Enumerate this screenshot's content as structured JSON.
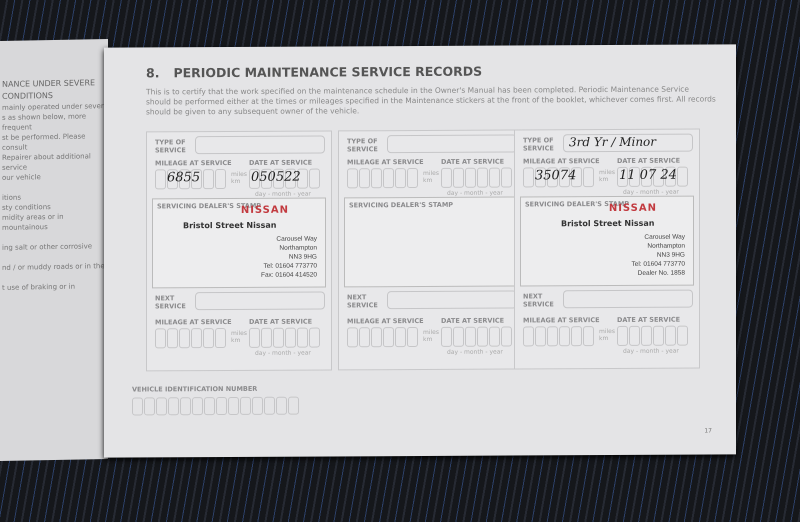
{
  "left_page": {
    "heading": [
      "NANCE UNDER SEVERE",
      "CONDITIONS"
    ],
    "lines": [
      "mainly operated under severe",
      "s as shown below, more frequent",
      "st be performed. Please consult",
      "Repairer about additional service",
      "our vehicle",
      "",
      "itions",
      "sty conditions",
      "midity areas or in mountainous",
      "",
      "ing salt or other corrosive",
      "",
      "nd / or muddy roads or in the",
      "",
      "t use of braking or in"
    ]
  },
  "page": {
    "section_number": "8.",
    "title": "PERIODIC MAINTENANCE SERVICE RECORDS",
    "intro": "This is to certify that the work specified on the maintenance schedule in the Owner's Manual has been completed. Periodic Maintenance Service should be performed either at the times or mileages specified in the Maintenance stickers at the front of the booklet, whichever comes first. All records should be given to any subsequent owner of the vehicle.",
    "page_number": "17",
    "vin_label": "VEHICLE IDENTIFICATION NUMBER"
  },
  "labels": {
    "type_of_service": "TYPE OF SERVICE",
    "mileage": "MILEAGE AT SERVICE",
    "date": "DATE AT SERVICE",
    "units": "miles km",
    "date_format": "day - month - year",
    "stamp": "SERVICING DEALER'S STAMP",
    "next_service": "NEXT SERVICE"
  },
  "records": [
    {
      "type": "",
      "mileage": "6855",
      "date": "050522",
      "stamp": {
        "brand": "NISSAN",
        "dealer": "Bristol Street Nissan",
        "address": [
          "Carousel Way",
          "Northampton",
          "NN3 9HG",
          "Tel: 01604 773770",
          "Fax: 01604 414520"
        ]
      }
    },
    {
      "type": "",
      "mileage": "",
      "date": "",
      "stamp": null
    },
    {
      "type": "3rd Yr / Minor",
      "mileage": "35074",
      "date": "11 07 24",
      "stamp": {
        "brand": "NISSAN",
        "dealer": "Bristol Street Nissan",
        "address": [
          "Carousel Way",
          "Northampton",
          "NN3 9HG",
          "Tel: 01604 773770",
          "Dealer No. 1858"
        ]
      }
    }
  ],
  "colors": {
    "brand_red": "#c23a3f",
    "page": "#e4e4e6"
  }
}
